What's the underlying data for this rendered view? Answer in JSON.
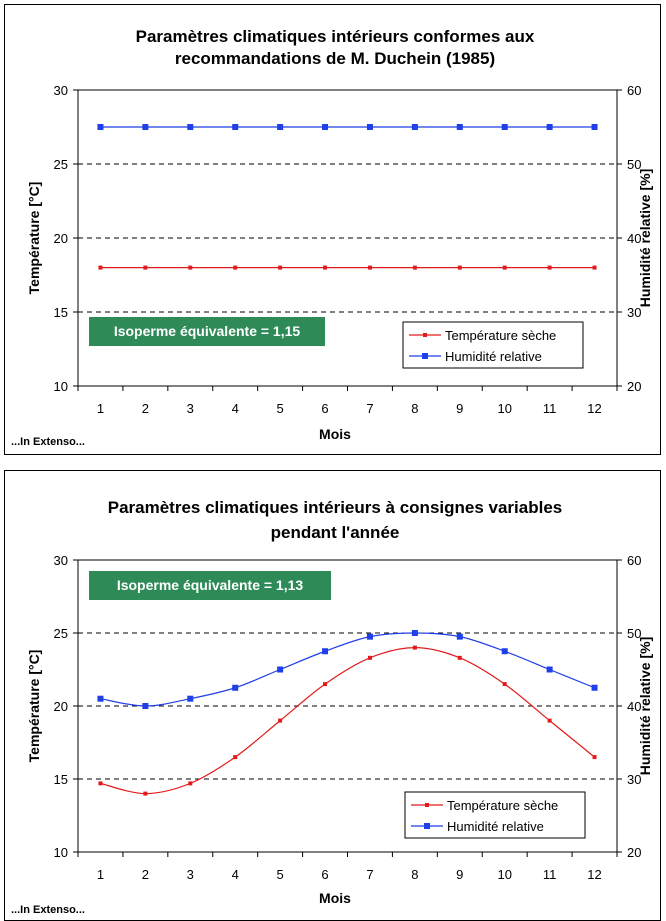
{
  "chart_data": [
    {
      "type": "line",
      "title": [
        "Paramètres climatiques intérieurs conformes aux",
        "recommandations de M. Duchein (1985)"
      ],
      "xlabel": "Mois",
      "ylabel": "Température [°C]",
      "y2label": "Humidité relative [%]",
      "categories": [
        1,
        2,
        3,
        4,
        5,
        6,
        7,
        8,
        9,
        10,
        11,
        12
      ],
      "ylim": [
        10,
        30
      ],
      "y2lim": [
        20,
        60
      ],
      "yticks": [
        10,
        15,
        20,
        25,
        30
      ],
      "y2ticks": [
        20,
        30,
        40,
        50,
        60
      ],
      "grid": "dashed horizontal",
      "legend_position": "bottom-right",
      "series": [
        {
          "name": "Température sèche",
          "axis": "left",
          "color": "#e31a1c",
          "marker": "small-square",
          "values": [
            18,
            18,
            18,
            18,
            18,
            18,
            18,
            18,
            18,
            18,
            18,
            18
          ]
        },
        {
          "name": "Humidité relative",
          "axis": "right",
          "color": "#1f3fe8",
          "marker": "square",
          "values": [
            55,
            55,
            55,
            55,
            55,
            55,
            55,
            55,
            55,
            55,
            55,
            55
          ]
        }
      ],
      "badge": {
        "text": "Isoperme équivalente = 1,15",
        "color": "#2e8b57",
        "position": "bottom-left"
      },
      "footer": "...In Extenso..."
    },
    {
      "type": "line",
      "title": [
        "Paramètres climatiques intérieurs à consignes variables",
        "pendant l'année"
      ],
      "xlabel": "Mois",
      "ylabel": "Température [°C]",
      "y2label": "Humidité relative [%]",
      "categories": [
        1,
        2,
        3,
        4,
        5,
        6,
        7,
        8,
        9,
        10,
        11,
        12
      ],
      "ylim": [
        10,
        30
      ],
      "y2lim": [
        20,
        60
      ],
      "yticks": [
        10,
        15,
        20,
        25,
        30
      ],
      "y2ticks": [
        20,
        30,
        40,
        50,
        60
      ],
      "grid": "dashed horizontal",
      "legend_position": "bottom-right",
      "series": [
        {
          "name": "Température sèche",
          "axis": "left",
          "color": "#e31a1c",
          "marker": "small-square",
          "values": [
            14.7,
            14,
            14.7,
            16.5,
            19,
            21.5,
            23.3,
            24,
            23.3,
            21.5,
            19,
            16.5
          ]
        },
        {
          "name": "Humidité relative",
          "axis": "right",
          "color": "#1f3fe8",
          "marker": "square",
          "values": [
            41,
            40,
            41,
            42.5,
            45,
            47.5,
            49.5,
            50,
            49.5,
            47.5,
            45,
            42.5
          ]
        }
      ],
      "badge": {
        "text": "Isoperme équivalente = 1,13",
        "color": "#2e8b57",
        "position": "top-left"
      },
      "footer": "...In Extenso..."
    }
  ]
}
